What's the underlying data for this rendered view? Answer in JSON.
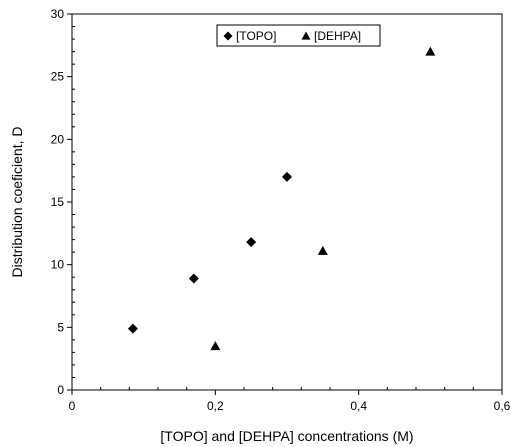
{
  "chart_data": {
    "type": "scatter",
    "title": "",
    "xlabel": "[TOPO]  and [DEHPA] concentrations (M)",
    "ylabel": "Distribution coeficient, D",
    "xlim": [
      0,
      0.6
    ],
    "ylim": [
      0,
      30
    ],
    "x_ticks": [
      0,
      0.2,
      0.4,
      0.6
    ],
    "x_tick_labels": [
      "0",
      "0,2",
      "0,4",
      "0,6"
    ],
    "y_ticks": [
      0,
      5,
      10,
      15,
      20,
      25,
      30
    ],
    "y_tick_labels": [
      "0",
      "5",
      "10",
      "15",
      "20",
      "25",
      "30"
    ],
    "grid": false,
    "legend_position": "top-center",
    "series": [
      {
        "name": "[TOPO]",
        "marker": "diamond",
        "color": "#000000",
        "points": [
          {
            "x": 0.085,
            "y": 4.9
          },
          {
            "x": 0.17,
            "y": 8.9
          },
          {
            "x": 0.25,
            "y": 11.8
          },
          {
            "x": 0.3,
            "y": 17.0
          }
        ]
      },
      {
        "name": "[DEHPA]",
        "marker": "triangle",
        "color": "#000000",
        "points": [
          {
            "x": 0.2,
            "y": 3.5
          },
          {
            "x": 0.35,
            "y": 11.1
          },
          {
            "x": 0.5,
            "y": 27.0
          }
        ]
      }
    ]
  }
}
